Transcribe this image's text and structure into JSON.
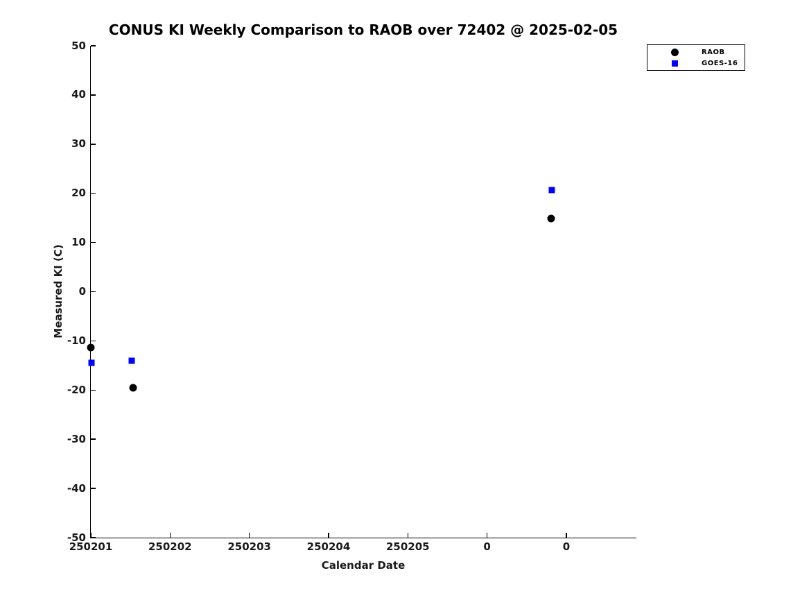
{
  "chart_data": {
    "type": "scatter",
    "title": "CONUS KI Weekly Comparison to RAOB over 72402 @ 2025-02-05",
    "xlabel": "Calendar Date",
    "ylabel": "Measured KI (C)",
    "xlim": [
      0,
      6.875
    ],
    "ylim": [
      -50,
      50
    ],
    "x_unit": "days since 250201",
    "grid": false,
    "legend_position": "top-right",
    "axis_color": "#000000",
    "x_ticks": [
      {
        "pos": 0,
        "label": "250201"
      },
      {
        "pos": 1,
        "label": "250202"
      },
      {
        "pos": 2,
        "label": "250203"
      },
      {
        "pos": 3,
        "label": "250204"
      },
      {
        "pos": 4,
        "label": "250205"
      },
      {
        "pos": 5,
        "label": "0"
      },
      {
        "pos": 6,
        "label": "0"
      }
    ],
    "y_ticks": [
      {
        "pos": 50,
        "label": "50"
      },
      {
        "pos": 40,
        "label": "40"
      },
      {
        "pos": 30,
        "label": "30"
      },
      {
        "pos": 20,
        "label": "20"
      },
      {
        "pos": 10,
        "label": "10"
      },
      {
        "pos": 0,
        "label": "0"
      },
      {
        "pos": -10,
        "label": "-10"
      },
      {
        "pos": -20,
        "label": "-20"
      },
      {
        "pos": -30,
        "label": "-30"
      },
      {
        "pos": -40,
        "label": "-40"
      },
      {
        "pos": -50,
        "label": "-50"
      }
    ],
    "series": [
      {
        "name": "RAOB",
        "marker": "circle",
        "color": "#000000",
        "marker_size": 11,
        "points": [
          {
            "x": 0.0,
            "y": -11.4
          },
          {
            "x": 0.53,
            "y": -19.5
          },
          {
            "x": 5.81,
            "y": 14.9
          }
        ]
      },
      {
        "name": "GOES-16",
        "marker": "square",
        "color": "#0000ff",
        "marker_size": 9,
        "points": [
          {
            "x": 0.01,
            "y": -14.4
          },
          {
            "x": 0.52,
            "y": -14.0
          },
          {
            "x": 5.82,
            "y": 20.6
          }
        ]
      }
    ]
  }
}
